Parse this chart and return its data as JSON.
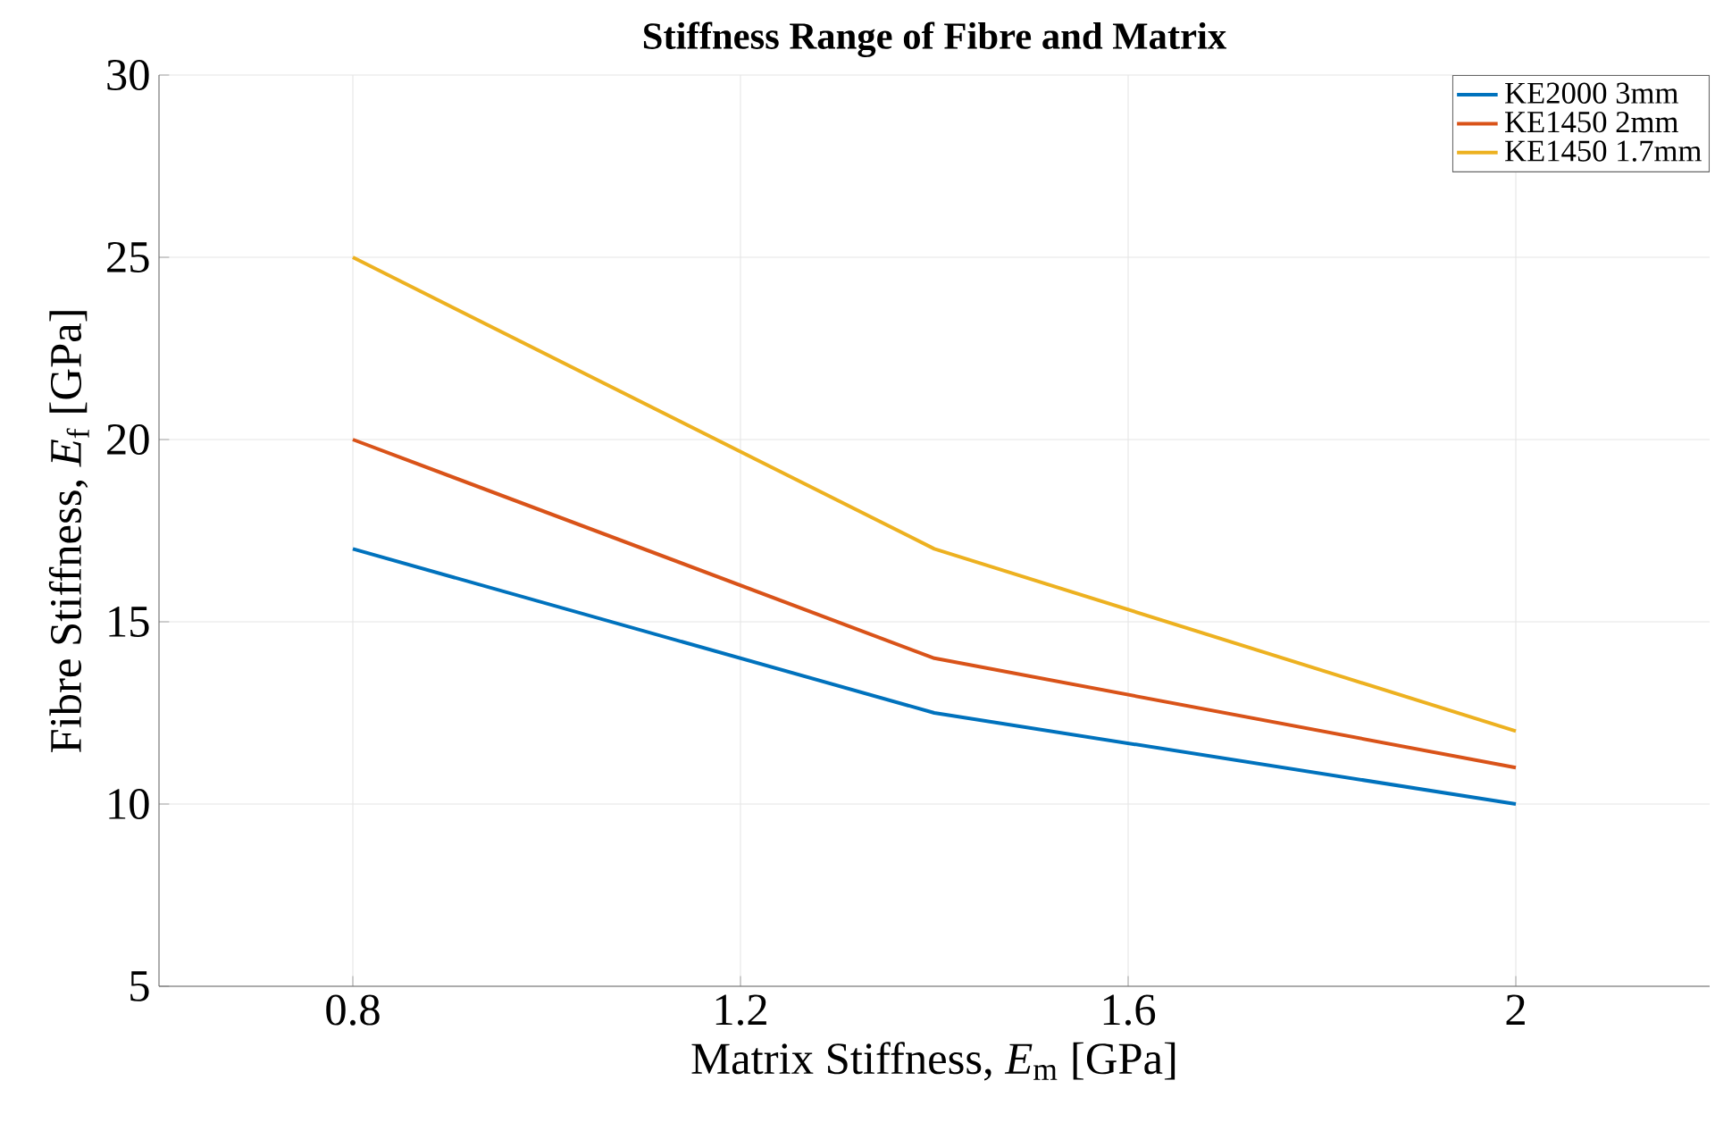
{
  "chart_data": {
    "type": "line",
    "title": "Stiffness Range of Fibre and Matrix",
    "xlabel": "Matrix Stiffness, *E*$_{m}$ [GPa]",
    "ylabel": "Fibre Stiffness, *E*$_{f}$ [GPa]",
    "x": [
      0.8,
      1.4,
      2
    ],
    "series": [
      {
        "name": "KE2000 3mm",
        "color": "#0072bd",
        "values": [
          17,
          12.5,
          10
        ]
      },
      {
        "name": "KE1450 2mm",
        "color": "#d95319",
        "values": [
          20,
          14,
          11
        ]
      },
      {
        "name": "KE1450 1.7mm",
        "color": "#edb120",
        "values": [
          25,
          17,
          12
        ]
      }
    ],
    "xlim": [
      0.6,
      2.2
    ],
    "xticks": [
      0.8,
      1.2,
      1.6,
      2
    ],
    "ylim": [
      5,
      30
    ],
    "yticks": [
      5,
      10,
      15,
      20,
      25,
      30
    ],
    "grid": true,
    "legend": "top right",
    "marker": "none",
    "line_style": "solid"
  }
}
